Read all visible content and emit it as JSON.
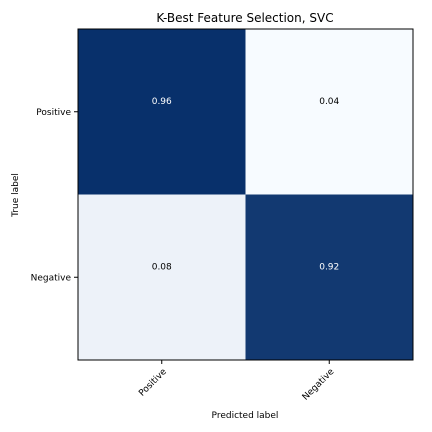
{
  "chart_data": {
    "type": "heatmap",
    "title": "K-Best Feature Selection, SVC",
    "xlabel": "Predicted label",
    "ylabel": "True label",
    "x_categories": [
      "Positive",
      "Negative"
    ],
    "y_categories": [
      "Positive",
      "Negative"
    ],
    "values": [
      [
        0.96,
        0.04
      ],
      [
        0.08,
        0.92
      ]
    ],
    "value_labels": [
      [
        "0.96",
        "0.04"
      ],
      [
        "0.08",
        "0.92"
      ]
    ],
    "colormap": "Blues",
    "vmin": 0.04,
    "vmax": 0.96,
    "grid": false
  },
  "colors": {
    "low": "#f7fbff",
    "high": "#08306b",
    "text_dark": "#000000",
    "text_light": "#ffffff"
  }
}
